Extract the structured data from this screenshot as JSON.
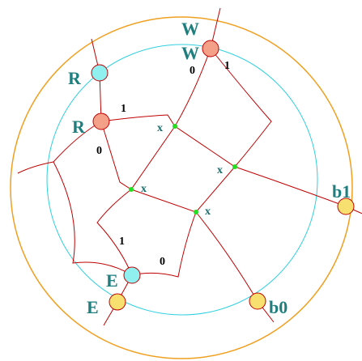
{
  "nodes": [
    {
      "label": "W"
    },
    {
      "label": "W"
    },
    {
      "label": "R"
    },
    {
      "label": "R"
    },
    {
      "label": "E"
    },
    {
      "label": "E"
    },
    {
      "label": "b1"
    },
    {
      "label": "b0"
    }
  ],
  "edge_labels": [
    "0",
    "1",
    "1",
    "0",
    "1",
    "0"
  ],
  "crossings": [
    "x",
    "x",
    "x",
    "x"
  ]
}
